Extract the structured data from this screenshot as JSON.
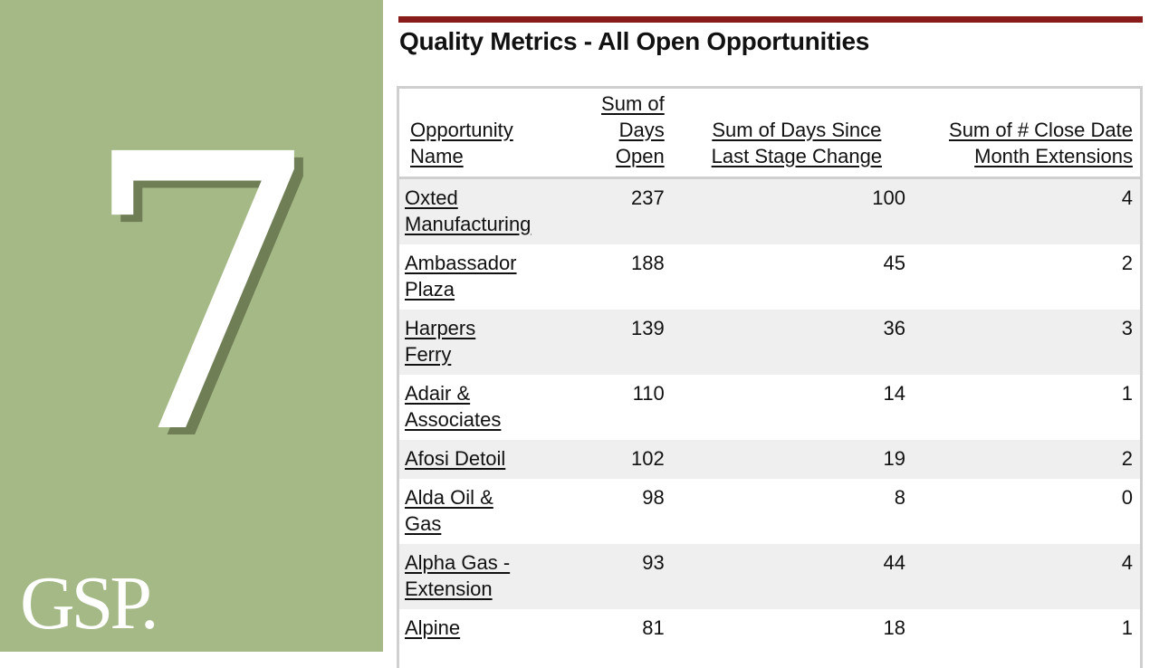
{
  "slide": {
    "number": "7",
    "logo_text": "GSP."
  },
  "colors": {
    "left_panel": "#a5b987",
    "accent_rule": "#8a1b1b",
    "row_shade": "#efefef"
  },
  "report": {
    "title": "Quality Metrics - All Open Opportunities",
    "columns": [
      "Opportunity Name",
      "Sum of Days Open",
      "Sum of Days Since Last Stage Change",
      "Sum of # Close Date Month Extensions"
    ],
    "rows": [
      {
        "name": "Oxted Manufacturing",
        "days_open": "237",
        "days_since_stage": "100",
        "extensions": "4"
      },
      {
        "name": "Ambassador Plaza",
        "days_open": "188",
        "days_since_stage": "45",
        "extensions": "2"
      },
      {
        "name": "Harpers Ferry",
        "days_open": "139",
        "days_since_stage": "36",
        "extensions": "3"
      },
      {
        "name": "Adair & Associates",
        "days_open": "110",
        "days_since_stage": "14",
        "extensions": "1"
      },
      {
        "name": "Afosi Detoil",
        "days_open": "102",
        "days_since_stage": "19",
        "extensions": "2"
      },
      {
        "name": "Alda Oil & Gas",
        "days_open": "98",
        "days_since_stage": "8",
        "extensions": "0"
      },
      {
        "name": "Alpha Gas - Extension",
        "days_open": "93",
        "days_since_stage": "44",
        "extensions": "4"
      },
      {
        "name": "Alpine",
        "days_open": "81",
        "days_since_stage": "18",
        "extensions": "1"
      }
    ]
  }
}
